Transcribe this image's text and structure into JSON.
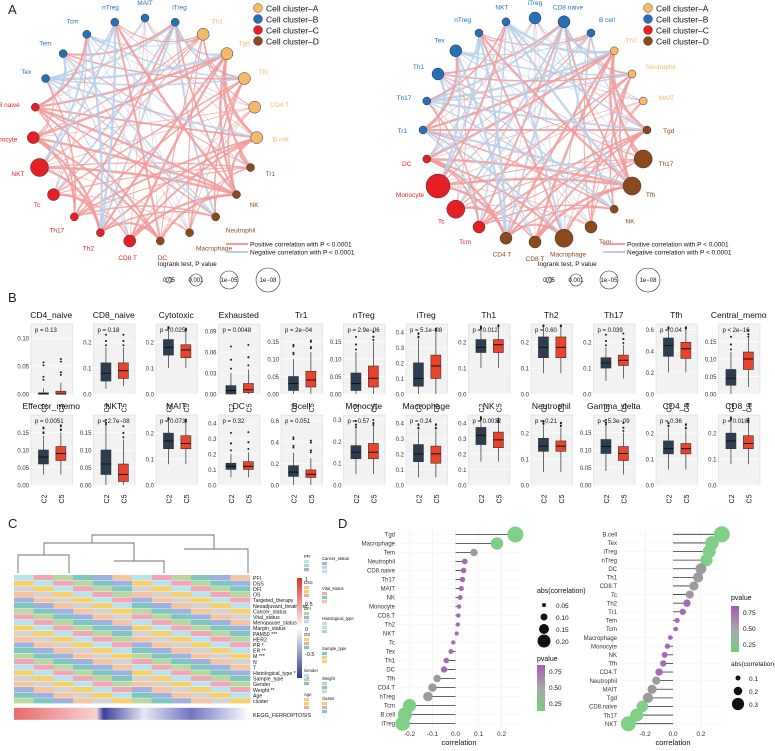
{
  "panels": {
    "a": "A",
    "b": "B",
    "c": "C",
    "d": "D"
  },
  "colors": {
    "A": "#f4b96a",
    "B": "#2670b8",
    "C": "#e41f26",
    "D": "#8b4a1c",
    "pos": "#f29a9a",
    "neg": "#b9cfe7",
    "box_c2": "#2c3e50",
    "box_c5": "#e8452c"
  },
  "panel_a": {
    "legend": {
      "clusters": [
        "Cell cluster–A",
        "Cell cluster–B",
        "Cell cluster–C",
        "Cell cluster–D"
      ],
      "pos_label": "Positive correlation with P < 0.0001",
      "neg_label": "Negative correlation with P < 0.0001",
      "size_title": "logrank test, P value",
      "size_values": [
        "0.05",
        "0.001",
        "1e−05",
        "1e−08"
      ]
    },
    "left_nodes": [
      {
        "name": "MAIT",
        "cluster": "B",
        "size": 1
      },
      {
        "name": "iTreg",
        "cluster": "B",
        "size": 1
      },
      {
        "name": "Th1",
        "cluster": "A",
        "size": 2
      },
      {
        "name": "Tgd",
        "cluster": "A",
        "size": 2
      },
      {
        "name": "Tfh",
        "cluster": "A",
        "size": 2
      },
      {
        "name": "CD4 T",
        "cluster": "A",
        "size": 2
      },
      {
        "name": "B cell",
        "cluster": "A",
        "size": 2
      },
      {
        "name": "Tr1",
        "cluster": "D",
        "size": 1
      },
      {
        "name": "NK",
        "cluster": "D",
        "size": 1
      },
      {
        "name": "Neutrophil",
        "cluster": "D",
        "size": 1
      },
      {
        "name": "Macrophage",
        "cluster": "D",
        "size": 1
      },
      {
        "name": "DC",
        "cluster": "D",
        "size": 1
      },
      {
        "name": "CD8 T",
        "cluster": "C",
        "size": 2
      },
      {
        "name": "Th2",
        "cluster": "C",
        "size": 1
      },
      {
        "name": "Th17",
        "cluster": "C",
        "size": 1
      },
      {
        "name": "Tc",
        "cluster": "C",
        "size": 2
      },
      {
        "name": "NKT",
        "cluster": "C",
        "size": 3
      },
      {
        "name": "Monocyte",
        "cluster": "C",
        "size": 2
      },
      {
        "name": "CD8 naive",
        "cluster": "C",
        "size": 1
      },
      {
        "name": "Tex",
        "cluster": "B",
        "size": 1
      },
      {
        "name": "Tem",
        "cluster": "B",
        "size": 1
      },
      {
        "name": "Tcm",
        "cluster": "B",
        "size": 1
      },
      {
        "name": "nTreg",
        "cluster": "B",
        "size": 1
      }
    ],
    "right_nodes": [
      {
        "name": "iTreg",
        "cluster": "B",
        "size": 2
      },
      {
        "name": "CD8 naive",
        "cluster": "B",
        "size": 2
      },
      {
        "name": "B cell",
        "cluster": "B",
        "size": 1
      },
      {
        "name": "Th2",
        "cluster": "A",
        "size": 1
      },
      {
        "name": "Neutrophil",
        "cluster": "A",
        "size": 1
      },
      {
        "name": "MAIT",
        "cluster": "A",
        "size": 1
      },
      {
        "name": "Tgd",
        "cluster": "D",
        "size": 1
      },
      {
        "name": "Th17",
        "cluster": "D",
        "size": 3
      },
      {
        "name": "Tfh",
        "cluster": "D",
        "size": 3
      },
      {
        "name": "NK",
        "cluster": "D",
        "size": 1
      },
      {
        "name": "Tem",
        "cluster": "D",
        "size": 2
      },
      {
        "name": "Macrophage",
        "cluster": "D",
        "size": 3
      },
      {
        "name": "CD8 T",
        "cluster": "D",
        "size": 2
      },
      {
        "name": "CD4 T",
        "cluster": "D",
        "size": 2
      },
      {
        "name": "Tcm",
        "cluster": "C",
        "size": 2
      },
      {
        "name": "Tc",
        "cluster": "C",
        "size": 3
      },
      {
        "name": "Monocyte",
        "cluster": "C",
        "size": 4
      },
      {
        "name": "DC",
        "cluster": "C",
        "size": 1
      },
      {
        "name": "Tr1",
        "cluster": "B",
        "size": 1
      },
      {
        "name": "Th17",
        "cluster": "B",
        "size": 1
      },
      {
        "name": "Th1",
        "cluster": "B",
        "size": 2
      },
      {
        "name": "Tex",
        "cluster": "B",
        "size": 2
      },
      {
        "name": "nTreg",
        "cluster": "B",
        "size": 1
      },
      {
        "name": "NKT",
        "cluster": "B",
        "size": 1
      }
    ]
  },
  "chart_data": {
    "type": "box",
    "groups": [
      "C2",
      "C5"
    ],
    "ylabel": "",
    "panels": [
      {
        "name": "CD4_naive",
        "p": "p = 0.13",
        "ylim": [
          0,
          0.125
        ],
        "ticks": [
          "0.00",
          "0.05",
          "0.10"
        ],
        "c2": [
          0,
          0,
          0,
          0.002,
          0.01
        ],
        "c5": [
          0,
          0,
          0,
          0.005,
          0.02
        ]
      },
      {
        "name": "CD8_naive",
        "p": "p = 0.18",
        "ylim": [
          0,
          0.27
        ],
        "ticks": [
          "0.0",
          "0.1",
          "0.2"
        ],
        "c2": [
          0.02,
          0.05,
          0.08,
          0.12,
          0.18
        ],
        "c5": [
          0.03,
          0.06,
          0.09,
          0.12,
          0.18
        ]
      },
      {
        "name": "Cytotoxic",
        "p": "p = 0.025",
        "ylim": [
          0,
          0.27
        ],
        "ticks": [
          "0.0",
          "0.1",
          "0.2"
        ],
        "c2": [
          0.1,
          0.15,
          0.18,
          0.21,
          0.25
        ],
        "c5": [
          0.1,
          0.14,
          0.17,
          0.19,
          0.24
        ]
      },
      {
        "name": "Exhausted",
        "p": "p = 0.0048",
        "ylim": [
          0,
          0.1
        ],
        "ticks": [
          "0.00",
          "0.03",
          "0.06",
          "0.09"
        ],
        "c2": [
          0,
          0,
          0.005,
          0.012,
          0.03
        ],
        "c5": [
          0,
          0.002,
          0.006,
          0.015,
          0.035
        ]
      },
      {
        "name": "Tr1",
        "p": "p = 2e−04",
        "ylim": [
          0,
          0.2
        ],
        "ticks": [
          "0.00",
          "0.05",
          "0.10",
          "0.15"
        ],
        "c2": [
          0,
          0.01,
          0.03,
          0.05,
          0.1
        ],
        "c5": [
          0,
          0.02,
          0.04,
          0.065,
          0.12
        ]
      },
      {
        "name": "nTreg",
        "p": "p = 2.9e−06",
        "ylim": [
          0,
          0.2
        ],
        "ticks": [
          "0.00",
          "0.05",
          "0.10",
          "0.15"
        ],
        "c2": [
          0,
          0.01,
          0.03,
          0.06,
          0.12
        ],
        "c5": [
          0,
          0.02,
          0.045,
          0.08,
          0.15
        ]
      },
      {
        "name": "iTreg",
        "p": "p = 5.1e−08",
        "ylim": [
          0,
          0.45
        ],
        "ticks": [
          "0.0",
          "0.1",
          "0.2",
          "0.3",
          "0.4"
        ],
        "c2": [
          0,
          0.05,
          0.1,
          0.2,
          0.35
        ],
        "c5": [
          0,
          0.1,
          0.18,
          0.25,
          0.4
        ]
      },
      {
        "name": "Th1",
        "p": "p = 0.012",
        "ylim": [
          0,
          0.27
        ],
        "ticks": [
          "0.0",
          "0.1",
          "0.2"
        ],
        "c2": [
          0.1,
          0.16,
          0.18,
          0.21,
          0.25
        ],
        "c5": [
          0.1,
          0.16,
          0.19,
          0.21,
          0.26
        ]
      },
      {
        "name": "Th2",
        "p": "p = 0.60",
        "ylim": [
          0,
          0.27
        ],
        "ticks": [
          "0.0",
          "0.1",
          "0.2"
        ],
        "c2": [
          0.08,
          0.14,
          0.18,
          0.22,
          0.26
        ],
        "c5": [
          0.08,
          0.14,
          0.18,
          0.22,
          0.26
        ]
      },
      {
        "name": "Th17",
        "p": "p = 0.039",
        "ylim": [
          0,
          0.27
        ],
        "ticks": [
          "0.0",
          "0.1",
          "0.2"
        ],
        "c2": [
          0.05,
          0.1,
          0.12,
          0.14,
          0.18
        ],
        "c5": [
          0.06,
          0.11,
          0.13,
          0.15,
          0.19
        ]
      },
      {
        "name": "Tfh",
        "p": "p = 0.04",
        "ylim": [
          0,
          0.65
        ],
        "ticks": [
          "0.0",
          "0.2",
          "0.4",
          "0.6"
        ],
        "c2": [
          0.2,
          0.35,
          0.45,
          0.52,
          0.6
        ],
        "c5": [
          0.2,
          0.33,
          0.42,
          0.48,
          0.6
        ]
      },
      {
        "name": "Central_memo",
        "p": "p < 2e−16",
        "ylim": [
          0,
          0.2
        ],
        "ticks": [
          "0.00",
          "0.05",
          "0.10",
          "0.15"
        ],
        "c2": [
          0,
          0.025,
          0.045,
          0.07,
          0.12
        ],
        "c5": [
          0.02,
          0.07,
          0.1,
          0.12,
          0.16
        ]
      },
      {
        "name": "Effector_memo",
        "p": "p = 0.0051",
        "ylim": [
          0,
          0.2
        ],
        "ticks": [
          "0.00",
          "0.05",
          "0.10",
          "0.15"
        ],
        "c2": [
          0.03,
          0.06,
          0.08,
          0.1,
          0.14
        ],
        "c5": [
          0.03,
          0.07,
          0.09,
          0.11,
          0.15
        ]
      },
      {
        "name": "NKT",
        "p": "p = 2.7e−08",
        "ylim": [
          0,
          0.2
        ],
        "ticks": [
          "0.00",
          "0.05",
          "0.10",
          "0.15"
        ],
        "c2": [
          0,
          0.03,
          0.06,
          0.1,
          0.17
        ],
        "c5": [
          0,
          0.01,
          0.03,
          0.06,
          0.13
        ]
      },
      {
        "name": "MAIT",
        "p": "p = 0.073",
        "ylim": [
          0,
          0.27
        ],
        "ticks": [
          "0.0",
          "0.1",
          "0.2"
        ],
        "c2": [
          0.08,
          0.14,
          0.17,
          0.2,
          0.25
        ],
        "c5": [
          0.08,
          0.14,
          0.16,
          0.19,
          0.24
        ]
      },
      {
        "name": "DC",
        "p": "p = 0.32",
        "ylim": [
          0,
          0.45
        ],
        "ticks": [
          "0.0",
          "0.1",
          "0.2",
          "0.3",
          "0.4"
        ],
        "c2": [
          0.05,
          0.1,
          0.12,
          0.14,
          0.2
        ],
        "c5": [
          0.05,
          0.1,
          0.12,
          0.15,
          0.21
        ]
      },
      {
        "name": "Bcell",
        "p": "p = 0.051",
        "ylim": [
          0,
          0.65
        ],
        "ticks": [
          "0.0",
          "0.2",
          "0.4",
          "0.6"
        ],
        "c2": [
          0,
          0.08,
          0.12,
          0.18,
          0.3
        ],
        "c5": [
          0,
          0.07,
          0.1,
          0.14,
          0.25
        ]
      },
      {
        "name": "Monocyte",
        "p": "p = 0.57",
        "ylim": [
          0,
          0.32
        ],
        "ticks": [
          "0.0",
          "0.1",
          "0.2",
          "0.3"
        ],
        "c2": [
          0.05,
          0.12,
          0.15,
          0.18,
          0.26
        ],
        "c5": [
          0.05,
          0.12,
          0.15,
          0.19,
          0.27
        ]
      },
      {
        "name": "Macrophage",
        "p": "p = 0.24",
        "ylim": [
          0,
          0.45
        ],
        "ticks": [
          "0.0",
          "0.1",
          "0.2",
          "0.3",
          "0.4"
        ],
        "c2": [
          0.05,
          0.15,
          0.2,
          0.26,
          0.35
        ],
        "c5": [
          0.05,
          0.14,
          0.2,
          0.25,
          0.35
        ]
      },
      {
        "name": "NK",
        "p": "p = 0.0032",
        "ylim": [
          0,
          0.45
        ],
        "ticks": [
          "0.0",
          "0.1",
          "0.2",
          "0.3",
          "0.4"
        ],
        "c2": [
          0.15,
          0.26,
          0.32,
          0.37,
          0.42
        ],
        "c5": [
          0.15,
          0.24,
          0.29,
          0.34,
          0.4
        ]
      },
      {
        "name": "Neutrophil",
        "p": "p = 0.21",
        "ylim": [
          0,
          0.27
        ],
        "ticks": [
          "0.0",
          "0.1",
          "0.2"
        ],
        "c2": [
          0.05,
          0.13,
          0.15,
          0.18,
          0.23
        ],
        "c5": [
          0.05,
          0.13,
          0.15,
          0.17,
          0.22
        ]
      },
      {
        "name": "Gamma_delta",
        "p": "p = 5.3e−09",
        "ylim": [
          0,
          0.2
        ],
        "ticks": [
          "0.00",
          "0.05",
          "0.10",
          "0.15"
        ],
        "c2": [
          0.04,
          0.09,
          0.11,
          0.13,
          0.17
        ],
        "c5": [
          0.03,
          0.07,
          0.09,
          0.11,
          0.15
        ]
      },
      {
        "name": "CD4_T",
        "p": "p = 0.36",
        "ylim": [
          0,
          0.27
        ],
        "ticks": [
          "0.0",
          "0.1",
          "0.2"
        ],
        "c2": [
          0.06,
          0.12,
          0.14,
          0.17,
          0.22
        ],
        "c5": [
          0.06,
          0.12,
          0.14,
          0.16,
          0.21
        ]
      },
      {
        "name": "CD8_T",
        "p": "p = 0.018",
        "ylim": [
          0,
          0.27
        ],
        "ticks": [
          "0.0",
          "0.1",
          "0.2"
        ],
        "c2": [
          0.08,
          0.14,
          0.17,
          0.2,
          0.25
        ],
        "c5": [
          0.08,
          0.14,
          0.16,
          0.19,
          0.24
        ]
      }
    ]
  },
  "panel_c": {
    "rows": [
      "PFI",
      "DSS",
      "DFI",
      "OS",
      "Targeted_therapy",
      "Neoadjuvant_treatment",
      "Cancer_status",
      "Vital_status",
      "Menopause_status",
      "Margin_status",
      "PAM50 ***",
      "HER2",
      "PR *",
      "ER **",
      "M ***",
      "N",
      "T",
      "Histological_type *",
      "Sample_type",
      "Gender",
      "Weight **",
      "Age",
      "cluster"
    ],
    "bottom_label": "KEGG_FERROPTOSIS",
    "scale_ticks": [
      "1",
      "0.5",
      "0",
      "-0.5",
      "-1"
    ],
    "legend_titles": [
      "PFI",
      "DSS",
      "DFI",
      "OS",
      "Cancer_status",
      "Vital_status",
      "Histological_type",
      "Sample_type",
      "Gender",
      "Age",
      "Weight",
      "cluster"
    ]
  },
  "panel_d": {
    "left": {
      "xlabel": "correlation",
      "xticks": [
        "-0.2",
        "-0.1",
        "0.0",
        "0.1",
        "0.2"
      ],
      "cells": [
        "Tgd",
        "Macrophage",
        "Tem",
        "Neutrophil",
        "CD8.naive",
        "Th17",
        "MAIT",
        "NK",
        "Monocyte",
        "CD8.T",
        "Th2",
        "NKT",
        "Tc",
        "Tex",
        "Th1",
        "DC",
        "Tfh",
        "CD4.T",
        "nTreg",
        "Tcm",
        "B.cell",
        "iTreg"
      ],
      "values": [
        0.26,
        0.18,
        0.08,
        0.04,
        0.035,
        0.03,
        0.025,
        0.02,
        0.015,
        0.012,
        0.01,
        0.005,
        -0.01,
        -0.02,
        -0.04,
        -0.05,
        -0.08,
        -0.1,
        -0.12,
        -0.2,
        -0.22,
        -0.23
      ],
      "size_title": "abs(correlation)",
      "size_labels": [
        "0.05",
        "0.10",
        "0.15",
        "0.20"
      ],
      "color_title": "pvalue",
      "color_labels": [
        "0.75",
        "0.50",
        "0.25"
      ]
    },
    "right": {
      "xlabel": "correlation",
      "xticks": [
        "-0.2",
        "0.0",
        "0.2"
      ],
      "cells": [
        "B.cell",
        "Tex",
        "iTreg",
        "nTreg",
        "DC",
        "Th1",
        "CD8.T",
        "Tc",
        "Th2",
        "Tr1",
        "Tem",
        "Tcm",
        "Macrophage",
        "Monocyte",
        "NK",
        "Tfh",
        "CD4.T",
        "Neutrophil",
        "MAIT",
        "Tgd",
        "CD8.naive",
        "Th17",
        "NKT"
      ],
      "values": [
        0.35,
        0.28,
        0.26,
        0.24,
        0.2,
        0.18,
        0.15,
        0.12,
        0.1,
        0.07,
        0.03,
        0.02,
        -0.02,
        -0.04,
        -0.06,
        -0.07,
        -0.1,
        -0.12,
        -0.15,
        -0.18,
        -0.22,
        -0.26,
        -0.32
      ],
      "color_title": "pvalue",
      "color_labels": [
        "0.75",
        "0.50",
        "0.25"
      ],
      "size_title": "abs(correlation)",
      "size_labels": [
        "0.1",
        "0.2",
        "0.3"
      ]
    }
  }
}
